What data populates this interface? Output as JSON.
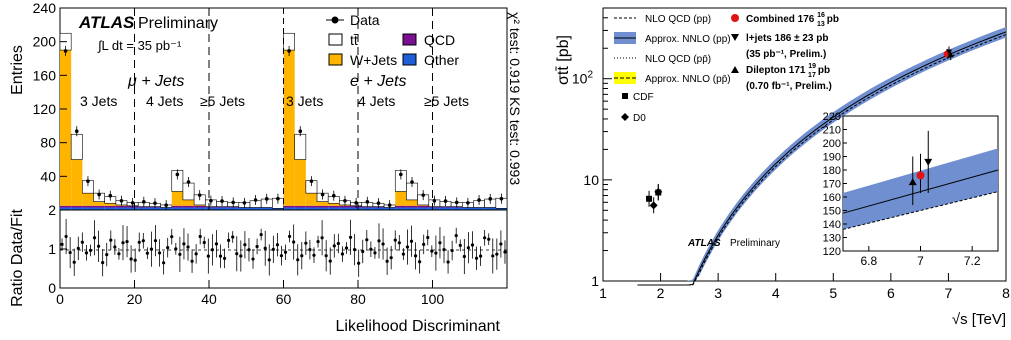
{
  "chart_data": [
    {
      "type": "bar",
      "panel": "left-top",
      "ylabel": "Entries",
      "ylim": [
        0,
        240
      ],
      "yticks": [
        40,
        80,
        120,
        160,
        200,
        240
      ],
      "atlas": "ATLAS",
      "preliminary": "Preliminary",
      "lumi": "∫L dt = 35 pb⁻¹",
      "channel_labels": {
        "mu": "μ + Jets",
        "e": "e + Jets"
      },
      "jet_bins": [
        "3 Jets",
        "4 Jets",
        "≥5 Jets",
        "3 Jets",
        "4 Jets",
        "≥5 Jets"
      ],
      "side_text": "χ² test: 0.919  KS test: 0.993",
      "legend": {
        "data": "Data",
        "ttbar": "tt̄",
        "wjets": "W+Jets",
        "qcd": "QCD",
        "other": "Other"
      },
      "colors": {
        "wjets": "#ffb400",
        "qcd": "#7a0f8f",
        "other": "#1e5fd8",
        "ttbar": "#ffffff"
      },
      "x_range": [
        0,
        120
      ],
      "regions": [
        0,
        20,
        40,
        60,
        80,
        100,
        120
      ],
      "series": [
        {
          "name": "W+Jets",
          "values": [
            190,
            60,
            20,
            10,
            8,
            6,
            5,
            4,
            4,
            3,
            22,
            12,
            6,
            4,
            4,
            4,
            3,
            3,
            3,
            2,
            190,
            60,
            20,
            10,
            8,
            6,
            5,
            4,
            4,
            3,
            22,
            12,
            6,
            4,
            4,
            4,
            3,
            3,
            3,
            2
          ]
        },
        {
          "name": "tt̄",
          "values": [
            20,
            30,
            15,
            10,
            8,
            5,
            4,
            5,
            4,
            3,
            25,
            20,
            12,
            8,
            6,
            5,
            6,
            8,
            10,
            12,
            20,
            30,
            15,
            10,
            8,
            5,
            4,
            5,
            4,
            3,
            25,
            20,
            12,
            8,
            6,
            5,
            6,
            8,
            10,
            12
          ]
        }
      ]
    },
    {
      "type": "scatter",
      "panel": "left-bottom",
      "ylabel": "Ratio Data/Fit",
      "xlabel": "Likelihood Discriminant",
      "ylim": [
        0,
        2
      ],
      "yticks": [
        0,
        1,
        2
      ],
      "xticks": [
        0,
        20,
        40,
        60,
        80,
        100
      ]
    },
    {
      "type": "line",
      "panel": "right",
      "ylabel": "σtt̄ [pb]",
      "xlabel": "√s [TeV]",
      "xlim": [
        1,
        8
      ],
      "ylim": [
        1,
        500
      ],
      "yscale": "log",
      "xticks": [
        1,
        2,
        3,
        4,
        5,
        6,
        7,
        8
      ],
      "yticks": [
        1,
        10,
        100
      ],
      "legend": [
        "NLO QCD (pp)",
        "Approx. NNLO (pp)",
        "NLO QCD (pp̄)",
        "Approx. NNLO (pp̄)",
        "CDF",
        "D0"
      ],
      "measurements": [
        {
          "label": "Combined 176 ",
          "value": 176,
          "up": 16,
          "down": 13,
          "suffix": "pb",
          "color": "#e11414"
        },
        {
          "label": "l+jets 186 ± 23 pb",
          "sub": "(35 pb⁻¹, Prelim.)",
          "value": 186
        },
        {
          "label": "Dilepton 171 ",
          "value": 171,
          "up": 19,
          "down": 17,
          "suffix": "pb",
          "sub": "(0.70 fb⁻¹, Prelim.)"
        }
      ],
      "atlas": "ATLAS",
      "preliminary": "Preliminary",
      "inset": {
        "xlim": [
          6.7,
          7.3
        ],
        "ylim": [
          120,
          220
        ],
        "xticks": [
          6.8,
          7,
          7.2
        ],
        "yticks": [
          120,
          130,
          140,
          150,
          160,
          170,
          180,
          190,
          200,
          210,
          220
        ],
        "points": [
          {
            "x": 6.97,
            "y": 171,
            "up": 19,
            "down": 17,
            "marker": "triangle-up"
          },
          {
            "x": 7.0,
            "y": 176,
            "up": 16,
            "down": 13,
            "marker": "circle"
          },
          {
            "x": 7.03,
            "y": 186,
            "up": 23,
            "down": 23,
            "marker": "triangle-down"
          }
        ]
      },
      "colors": {
        "pp_band": "#6f8fd1",
        "ppbar_band": "#ffff00"
      }
    }
  ]
}
